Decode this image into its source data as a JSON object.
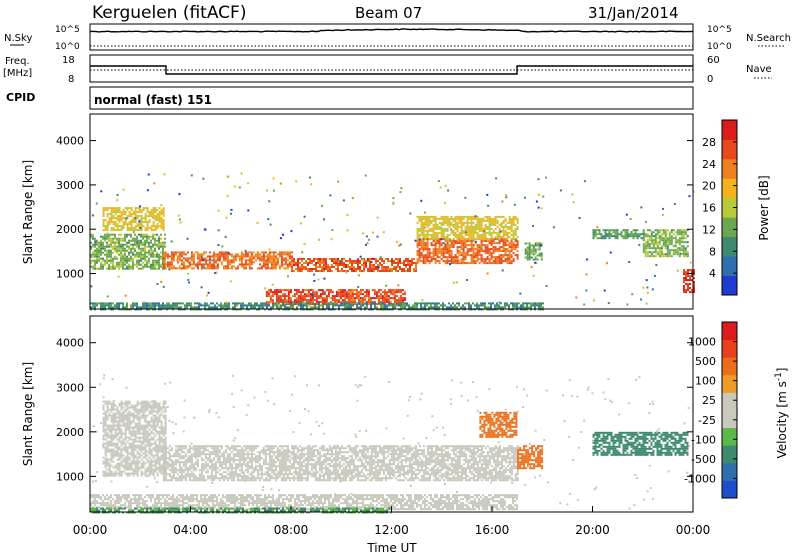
{
  "header": {
    "station": "Kerguelen (fitACF)",
    "beam": "Beam 07",
    "date": "31/Jan/2014"
  },
  "strip_labels": {
    "nsky": "N.Sky",
    "nsearch": "N.Search",
    "freq_line1": "Freq.",
    "freq_line2": "[MHz]",
    "nave": "Nave",
    "cpid": "CPID",
    "cpid_value": "normal (fast) 151"
  },
  "strip_ticks": {
    "noise_left": [
      "10^5",
      "10^0"
    ],
    "noise_right": [
      "10^5",
      "10^0"
    ],
    "freq_left": [
      "18",
      "8"
    ],
    "nave_right": [
      "60",
      "0"
    ]
  },
  "colors": {
    "power_scale": [
      "#1e3cd2",
      "#2f6fb0",
      "#3e8a6e",
      "#6aa84f",
      "#b9c93a",
      "#f2b31e",
      "#f07f1e",
      "#e8491c",
      "#dc1b1b"
    ],
    "velocity_scale": [
      "#1e4fc8",
      "#2f6fb0",
      "#3e8a6e",
      "#5cb84a",
      "#c8c8bc",
      "#c8c8bc",
      "#ee9c26",
      "#ec6e1a",
      "#e8401a",
      "#dc1b1b"
    ],
    "frame": "#000000"
  },
  "chart_data": [
    {
      "type": "heatmap",
      "name": "power",
      "ylabel": "Slant Range [km]",
      "yticks": [
        "4000",
        "3000",
        "2000",
        "1000"
      ],
      "ylim": [
        200,
        4600
      ],
      "colorbar_label": "Power [dB]",
      "colorbar_ticks": [
        "28",
        "24",
        "20",
        "16",
        "12",
        "8",
        "4"
      ],
      "zlim": [
        0,
        32
      ],
      "features": [
        {
          "t0": 0.0,
          "t1": 3.0,
          "r0": 1100,
          "r1": 1900,
          "v": 13
        },
        {
          "t0": 0.5,
          "t1": 2.9,
          "r0": 2000,
          "r1": 2500,
          "v": 18
        },
        {
          "t0": 2.9,
          "t1": 8.0,
          "r0": 1100,
          "r1": 1500,
          "v": 24
        },
        {
          "t0": 8.0,
          "t1": 13.0,
          "r0": 1050,
          "r1": 1350,
          "v": 26
        },
        {
          "t0": 13.0,
          "t1": 17.0,
          "r0": 1250,
          "r1": 1800,
          "v": 25
        },
        {
          "t0": 13.0,
          "t1": 17.0,
          "r0": 1800,
          "r1": 2300,
          "v": 18
        },
        {
          "t0": 7.0,
          "t1": 12.5,
          "r0": 300,
          "r1": 650,
          "v": 27
        },
        {
          "t0": 0.0,
          "t1": 18.0,
          "r0": 200,
          "r1": 350,
          "v": 9
        },
        {
          "t0": 17.3,
          "t1": 18.0,
          "r0": 1300,
          "r1": 1700,
          "v": 12
        },
        {
          "t0": 20.0,
          "t1": 22.0,
          "r0": 1800,
          "r1": 2000,
          "v": 11
        },
        {
          "t0": 22.0,
          "t1": 23.8,
          "r0": 1400,
          "r1": 2000,
          "v": 13
        },
        {
          "t0": 23.6,
          "t1": 24.0,
          "r0": 600,
          "r1": 1100,
          "v": 29
        }
      ]
    },
    {
      "type": "heatmap",
      "name": "velocity",
      "ylabel": "Slant Range [km]",
      "yticks": [
        "4000",
        "3000",
        "2000",
        "1000"
      ],
      "ylim": [
        200,
        4600
      ],
      "xlabel": "Time UT",
      "xticks": [
        "00:00",
        "04:00",
        "08:00",
        "12:00",
        "16:00",
        "20:00",
        "00:00"
      ],
      "xlim": [
        0,
        24
      ],
      "colorbar_label": "Velocity [m s^-1]",
      "colorbar_ticks": [
        "1000",
        "500",
        "100",
        "25",
        "-25",
        "-100",
        "-500",
        "-1000"
      ],
      "features": [
        {
          "t0": 0.5,
          "t1": 3.0,
          "r0": 1000,
          "r1": 2700,
          "v": 0
        },
        {
          "t0": 2.9,
          "t1": 17.0,
          "r0": 900,
          "r1": 1700,
          "v": 0
        },
        {
          "t0": 0.0,
          "t1": 17.0,
          "r0": 250,
          "r1": 600,
          "v": 0
        },
        {
          "t0": 0.0,
          "t1": 12.0,
          "r0": 200,
          "r1": 300,
          "v": 100
        },
        {
          "t0": 15.5,
          "t1": 17.0,
          "r0": 1900,
          "r1": 2450,
          "v": -200
        },
        {
          "t0": 17.0,
          "t1": 18.0,
          "r0": 1200,
          "r1": 1700,
          "v": -300
        },
        {
          "t0": 20.0,
          "t1": 23.8,
          "r0": 1500,
          "r1": 2000,
          "v": 150
        }
      ]
    }
  ]
}
